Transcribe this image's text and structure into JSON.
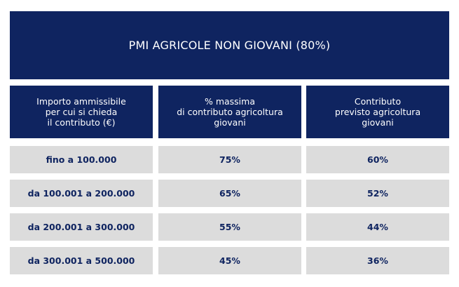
{
  "title": "PMI AGRICOLE NON GIOVANI (80%)",
  "columns": [
    "Importo ammissibile\nper cui si chieda\nil contributo (€)",
    "% massima\ndi contributo agricoltura\ngiovani",
    "Contributo\nprevisto agricoltura\ngiovani"
  ],
  "rows": [
    {
      "range": "fino a 100.000",
      "max_pct": "75%",
      "contributo": "60%"
    },
    {
      "range": "da 100.001 a 200.000",
      "max_pct": "65%",
      "contributo": "52%"
    },
    {
      "range": "da 200.001 a 300.000",
      "max_pct": "55%",
      "contributo": "44%"
    },
    {
      "range": "da 300.001 a 500.000",
      "max_pct": "45%",
      "contributo": "36%"
    }
  ],
  "colors": {
    "navy": "#0f2460",
    "row_bg": "#dcdcdc",
    "header_text": "#ffffff"
  }
}
